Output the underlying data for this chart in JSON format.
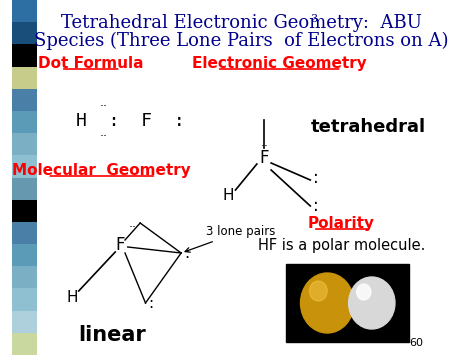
{
  "title_line1": "Tetrahedral Electronic Geometry:  ABU",
  "title_subscript": "3",
  "title_line2": "Species (Three Lone Pairs  of Electrons on A)",
  "title_color": "#00008B",
  "title_fontsize": 13,
  "bg_color": "#FFFFFF",
  "left_strip_colors": [
    "#2E6FA3",
    "#1A4E7A",
    "#000000",
    "#C8CC8A",
    "#4A7FA8",
    "#5B9BB8",
    "#7AAFC4",
    "#8FC0D2",
    "#6699B0",
    "#000000",
    "#4A7FA8",
    "#5B9BB8",
    "#7AAFC4",
    "#8FC0D2",
    "#AED0DC",
    "#C8D89E"
  ],
  "dot_formula_label": "Dot Formula",
  "elec_geom_label": "Electronic Geometry",
  "mol_geom_label": "Molecular  Geometry",
  "polarity_label": "Polarity",
  "red_color": "#FF0000",
  "label_fontsize": 11,
  "tetrahedral_text": "tetrahedral",
  "linear_text": "linear",
  "polarity_text": "HF is a polar molecule.",
  "page_number": "60"
}
